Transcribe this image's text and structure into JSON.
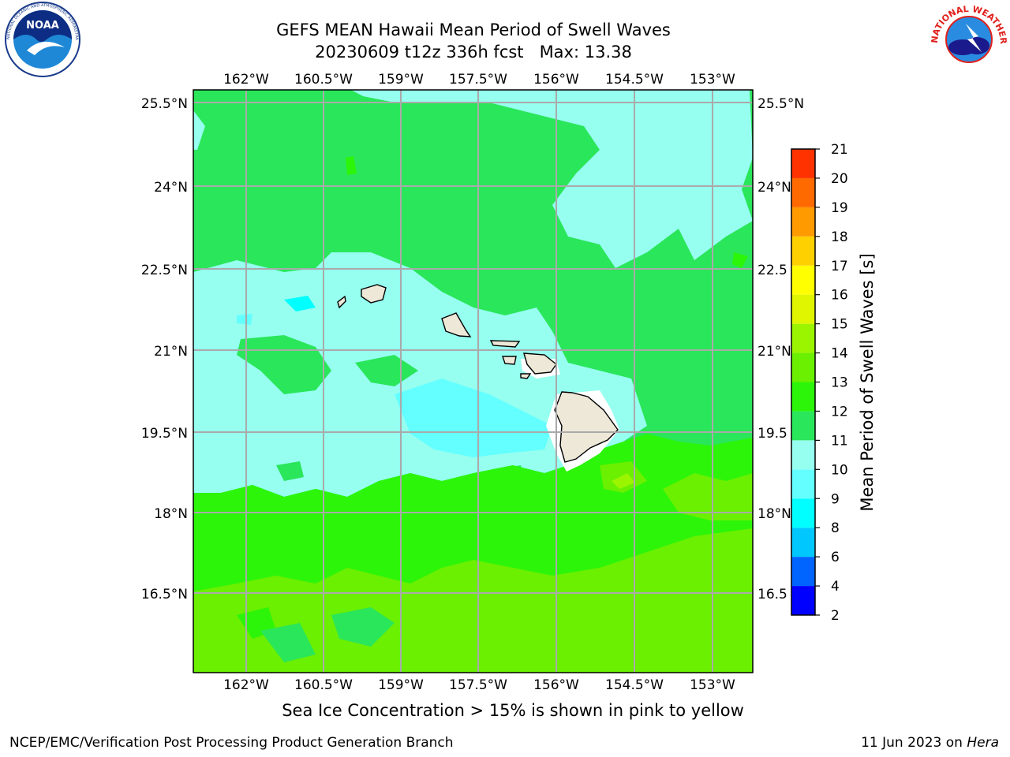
{
  "header": {
    "title_line1": "GEFS MEAN Hawaii Mean Period of Swell Waves",
    "title_line2": "20230609 t12z 336h fcst   Max: 13.38"
  },
  "logos": {
    "left": {
      "icon": "noaa-logo",
      "text": "NOAA",
      "ring_text": "NATIONAL OCEANIC AND ATMOSPHERIC ADMINISTRATION • U.S. DEPARTMENT OF COMMERCE"
    },
    "right": {
      "icon": "nws-logo",
      "ring_text": "NATIONAL WEATHER SERVICE"
    }
  },
  "map": {
    "lon_ticks": [
      "162°W",
      "160.5°W",
      "159°W",
      "157.5°W",
      "156°W",
      "154.5°W",
      "153°W"
    ],
    "lat_ticks_left": [
      "25.5°N",
      "24°N",
      "22.5°N",
      "21°N",
      "19.5°N",
      "18°N",
      "16.5°N"
    ],
    "lat_ticks_right": [
      "25.5°N",
      "24°N",
      "22.5",
      "21°N",
      "19.5",
      "18°N",
      "16.5"
    ],
    "gridlines": true,
    "region": "Hawaii"
  },
  "colorbar": {
    "label": "Mean Period of Swell Waves [s]",
    "ticks": [
      "2",
      "4",
      "6",
      "8",
      "9",
      "10",
      "11",
      "12",
      "13",
      "14",
      "15",
      "16",
      "17",
      "18",
      "19",
      "20",
      "21"
    ],
    "colors": [
      "#0000ff",
      "#0064ff",
      "#00c8ff",
      "#00ffff",
      "#64ffff",
      "#96fff0",
      "#2ae65a",
      "#2cf50a",
      "#6af000",
      "#9cf500",
      "#e0f500",
      "#ffff00",
      "#ffd000",
      "#ff9a00",
      "#ff6a00",
      "#ff3200"
    ]
  },
  "footer": {
    "note": "Sea Ice Concentration > 15% is shown in pink to yellow",
    "credit_left": "NCEP/EMC/Verification Post Processing Product Generation Branch",
    "credit_right_prefix": "11 Jun 2023 on ",
    "credit_right_host": "Hera"
  }
}
